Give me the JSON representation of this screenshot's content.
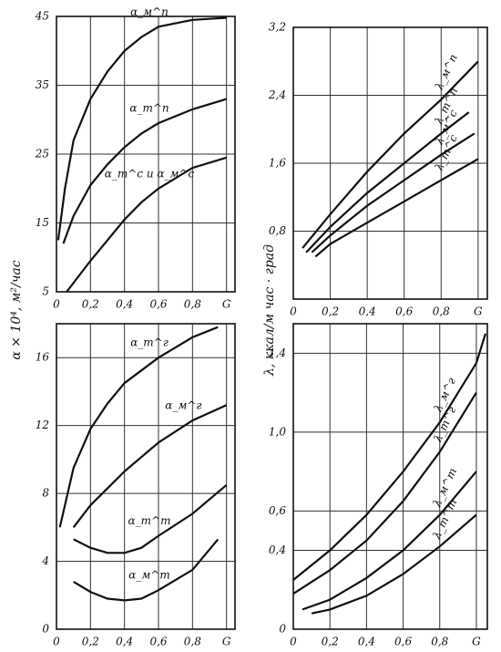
{
  "chart_data": [
    {
      "type": "line",
      "ylabel": "α × 10⁴, м²/час",
      "xlim": [
        0,
        1.05
      ],
      "ylim": [
        5,
        45
      ],
      "grid": true,
      "xticks": [
        0,
        {
          "value": 0.2,
          "label": "0,2"
        },
        {
          "value": 0.4,
          "label": "0,4"
        },
        {
          "value": 0.6,
          "label": "0,6"
        },
        {
          "value": 0.8,
          "label": "0,8"
        },
        {
          "value": 1,
          "label": "G"
        }
      ],
      "yticks": [
        5,
        15,
        25,
        35,
        45
      ],
      "series": [
        {
          "name": "α_м^п",
          "x": [
            0.01,
            0.05,
            0.1,
            0.2,
            0.3,
            0.4,
            0.5,
            0.6,
            0.8,
            1.0
          ],
          "values": [
            12.5,
            20,
            27,
            33,
            37,
            40,
            42,
            43.5,
            44.5,
            44.8
          ]
        },
        {
          "name": "α_т^п",
          "x": [
            0.04,
            0.1,
            0.2,
            0.3,
            0.4,
            0.5,
            0.6,
            0.8,
            1.0
          ],
          "values": [
            12,
            16,
            20.5,
            23.5,
            26,
            28,
            29.5,
            31.5,
            33
          ]
        },
        {
          "name": "α_т^с и α_м^с",
          "x": [
            0.06,
            0.2,
            0.3,
            0.4,
            0.5,
            0.6,
            0.8,
            1.0
          ],
          "values": [
            5,
            9.5,
            12.5,
            15.5,
            18,
            20,
            23,
            24.5
          ]
        }
      ]
    },
    {
      "type": "line",
      "ylabel": "λ, ккал/м час · град",
      "xlim": [
        0,
        1.05
      ],
      "ylim": [
        0,
        3.2
      ],
      "grid": true,
      "xticks": [
        0,
        {
          "value": 0.2,
          "label": "0,2"
        },
        {
          "value": 0.4,
          "label": "0,4"
        },
        {
          "value": 0.6,
          "label": "0,6"
        },
        {
          "value": 0.8,
          "label": "0,8"
        },
        {
          "value": 1,
          "label": "G"
        }
      ],
      "yticks": [
        {
          "value": 0.8,
          "label": "0,8"
        },
        {
          "value": 1.6,
          "label": "1,6"
        },
        {
          "value": 2.4,
          "label": "2,4"
        },
        {
          "value": 3.2,
          "label": "3,2"
        }
      ],
      "series": [
        {
          "name": "λ_м^п",
          "x": [
            0.05,
            0.2,
            0.4,
            0.6,
            0.8,
            1.0
          ],
          "values": [
            0.6,
            1.0,
            1.5,
            1.95,
            2.35,
            2.8
          ]
        },
        {
          "name": "λ_т^п",
          "x": [
            0.07,
            0.2,
            0.4,
            0.6,
            0.8,
            0.95
          ],
          "values": [
            0.55,
            0.85,
            1.25,
            1.6,
            1.95,
            2.2
          ]
        },
        {
          "name": "λ_м^с",
          "x": [
            0.1,
            0.2,
            0.4,
            0.6,
            0.8,
            0.98
          ],
          "values": [
            0.55,
            0.75,
            1.1,
            1.4,
            1.7,
            1.95
          ]
        },
        {
          "name": "λ_т^с",
          "x": [
            0.12,
            0.2,
            0.4,
            0.6,
            0.8,
            1.0
          ],
          "values": [
            0.5,
            0.65,
            0.9,
            1.15,
            1.4,
            1.65
          ]
        }
      ]
    },
    {
      "type": "line",
      "xlim": [
        0,
        1.05
      ],
      "ylim": [
        0,
        18
      ],
      "grid": true,
      "xticks": [
        0,
        {
          "value": 0.2,
          "label": "0,2"
        },
        {
          "value": 0.4,
          "label": "0,4"
        },
        {
          "value": 0.6,
          "label": "0,6"
        },
        {
          "value": 0.8,
          "label": "0,8"
        },
        {
          "value": 1,
          "label": "G"
        }
      ],
      "yticks": [
        0,
        4,
        8,
        12,
        16
      ],
      "series": [
        {
          "name": "α_т^г",
          "x": [
            0.02,
            0.1,
            0.2,
            0.3,
            0.4,
            0.6,
            0.8,
            0.95
          ],
          "values": [
            6,
            9.5,
            11.8,
            13.3,
            14.5,
            16,
            17.2,
            17.8
          ]
        },
        {
          "name": "α_м^г",
          "x": [
            0.1,
            0.2,
            0.4,
            0.6,
            0.8,
            1.0
          ],
          "values": [
            6,
            7.3,
            9.3,
            11,
            12.3,
            13.2
          ]
        },
        {
          "name": "α_т^т",
          "x": [
            0.1,
            0.2,
            0.3,
            0.4,
            0.5,
            0.6,
            0.8,
            1.0
          ],
          "values": [
            5.3,
            4.8,
            4.5,
            4.5,
            4.8,
            5.5,
            6.8,
            8.5
          ]
        },
        {
          "name": "α_м^т",
          "x": [
            0.1,
            0.2,
            0.3,
            0.4,
            0.5,
            0.6,
            0.8,
            0.95
          ],
          "values": [
            2.8,
            2.2,
            1.8,
            1.7,
            1.8,
            2.3,
            3.5,
            5.3
          ]
        }
      ]
    },
    {
      "type": "line",
      "xlim": [
        0,
        1.06
      ],
      "ylim": [
        0,
        1.55
      ],
      "grid": true,
      "xticks": [
        0,
        {
          "value": 0.2,
          "label": "0,2"
        },
        {
          "value": 0.4,
          "label": "0,4"
        },
        {
          "value": 0.6,
          "label": "0,6"
        },
        {
          "value": 0.8,
          "label": "0,8"
        },
        {
          "value": 1,
          "label": "G"
        }
      ],
      "yticks": [
        0,
        {
          "value": 0.4,
          "label": "0,4"
        },
        {
          "value": 0.6,
          "label": "0,6"
        },
        {
          "value": 1.0,
          "label": "1,0"
        },
        {
          "value": 1.4,
          "label": "1,4"
        }
      ],
      "series": [
        {
          "name": "λ_м^г",
          "x": [
            0.0,
            0.2,
            0.4,
            0.6,
            0.8,
            1.0,
            1.05
          ],
          "values": [
            0.25,
            0.4,
            0.58,
            0.8,
            1.05,
            1.35,
            1.5
          ]
        },
        {
          "name": "λ_т^г",
          "x": [
            0.0,
            0.2,
            0.4,
            0.6,
            0.8,
            1.0
          ],
          "values": [
            0.18,
            0.3,
            0.45,
            0.65,
            0.9,
            1.2
          ]
        },
        {
          "name": "λ_м^т",
          "x": [
            0.05,
            0.2,
            0.4,
            0.6,
            0.8,
            1.0
          ],
          "values": [
            0.1,
            0.15,
            0.26,
            0.4,
            0.58,
            0.8
          ]
        },
        {
          "name": "λ_т^т",
          "x": [
            0.1,
            0.2,
            0.4,
            0.6,
            0.8,
            1.0
          ],
          "values": [
            0.08,
            0.1,
            0.17,
            0.28,
            0.42,
            0.58
          ]
        }
      ]
    }
  ]
}
